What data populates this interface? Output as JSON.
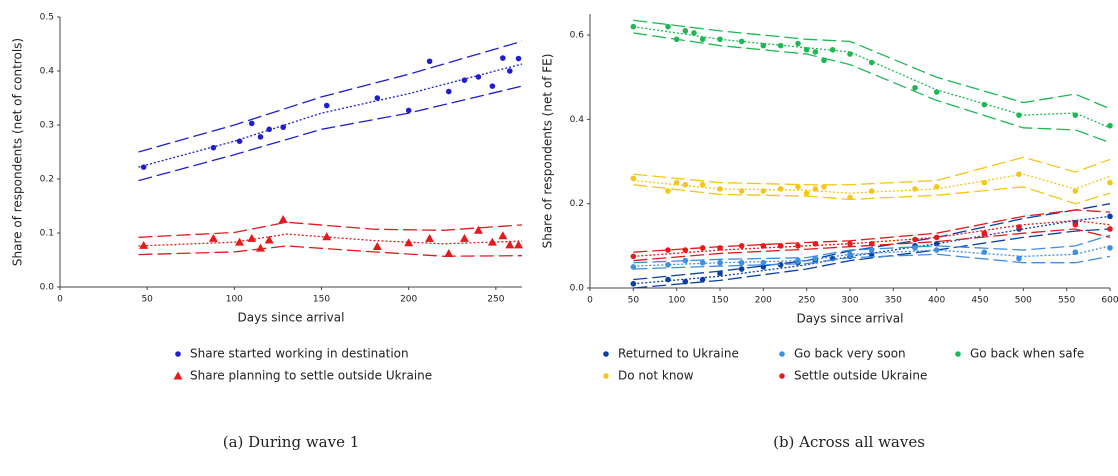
{
  "chart_data": [
    {
      "type": "scatter",
      "caption": "(a) During wave 1",
      "x_label": "Days since arrival",
      "y_label": "Share of respondents (net of controls)",
      "xlim": [
        0,
        265
      ],
      "xticks": [
        0,
        50,
        100,
        150,
        200,
        250
      ],
      "ylim": [
        0,
        0.5
      ],
      "yticks": [
        {
          "value": 0,
          "label": "0.0"
        },
        0.1,
        0.2,
        0.3,
        0.4,
        0.5
      ],
      "legend": "below",
      "series": [
        {
          "name": "Share started working in destination",
          "color": "#1f1fd0",
          "marker": "circle",
          "x": [
            48,
            88,
            103,
            110,
            115,
            120,
            128,
            153,
            182,
            200,
            212,
            223,
            232,
            240,
            248,
            254,
            258,
            263
          ],
          "values": [
            0.222,
            0.258,
            0.27,
            0.303,
            0.278,
            0.292,
            0.296,
            0.336,
            0.35,
            0.327,
            0.418,
            0.362,
            0.383,
            0.389,
            0.372,
            0.424,
            0.4,
            0.423
          ],
          "fit": {
            "x": [
              45,
              100,
              150,
              200,
              265
            ],
            "values": [
              0.222,
              0.27,
              0.322,
              0.358,
              0.413
            ],
            "lower": [
              0.197,
              0.245,
              0.292,
              0.322,
              0.372
            ],
            "upper": [
              0.25,
              0.3,
              0.352,
              0.394,
              0.455
            ]
          }
        },
        {
          "name": "Share planning to settle outside Ukraine",
          "color": "#e41a1c",
          "marker": "triangle",
          "x": [
            48,
            88,
            103,
            110,
            115,
            120,
            128,
            153,
            182,
            200,
            212,
            223,
            232,
            240,
            248,
            254,
            258,
            263
          ],
          "values": [
            0.077,
            0.09,
            0.083,
            0.09,
            0.072,
            0.087,
            0.125,
            0.093,
            0.075,
            0.082,
            0.09,
            0.062,
            0.09,
            0.105,
            0.083,
            0.095,
            0.078,
            0.078
          ],
          "fit": {
            "x": [
              45,
              100,
              130,
              180,
              220,
              265
            ],
            "values": [
              0.076,
              0.083,
              0.098,
              0.086,
              0.08,
              0.085
            ],
            "lower": [
              0.06,
              0.065,
              0.076,
              0.065,
              0.057,
              0.058
            ],
            "upper": [
              0.092,
              0.101,
              0.12,
              0.107,
              0.105,
              0.115
            ]
          }
        }
      ]
    },
    {
      "type": "scatter",
      "caption": "(b) Across all waves",
      "x_label": "Days since arrival",
      "y_label": "Share of respondents (net of FE)",
      "xlim": [
        0,
        600
      ],
      "xticks": [
        0,
        50,
        100,
        150,
        200,
        250,
        300,
        350,
        400,
        450,
        500,
        550,
        600
      ],
      "ylim": [
        0,
        0.65
      ],
      "yticks": [
        {
          "value": 0,
          "label": "0.0"
        },
        0.2,
        0.4,
        0.6
      ],
      "legend": "below",
      "series": [
        {
          "name": "Returned to Ukraine",
          "color": "#0a3fa6",
          "marker": "circle",
          "x": [
            50,
            90,
            110,
            130,
            150,
            175,
            200,
            220,
            240,
            260,
            280,
            300,
            325,
            375,
            400,
            455,
            495,
            560,
            600
          ],
          "values": [
            0.01,
            0.02,
            0.015,
            0.02,
            0.035,
            0.045,
            0.05,
            0.055,
            0.06,
            0.065,
            0.07,
            0.075,
            0.08,
            0.1,
            0.105,
            0.13,
            0.14,
            0.155,
            0.17
          ],
          "fit": {
            "x": [
              50,
              150,
              250,
              300,
              400,
              500,
              560,
              600
            ],
            "values": [
              0.01,
              0.028,
              0.055,
              0.075,
              0.105,
              0.14,
              0.16,
              0.17
            ],
            "lower": [
              0.0,
              0.018,
              0.045,
              0.065,
              0.09,
              0.12,
              0.135,
              0.14
            ],
            "upper": [
              0.02,
              0.04,
              0.065,
              0.088,
              0.12,
              0.165,
              0.185,
              0.2
            ]
          }
        },
        {
          "name": "Go back very soon",
          "color": "#3d8fe0",
          "marker": "circle",
          "x": [
            50,
            90,
            110,
            130,
            150,
            175,
            200,
            240,
            260,
            300,
            325,
            375,
            400,
            455,
            495,
            560,
            600
          ],
          "values": [
            0.05,
            0.055,
            0.065,
            0.06,
            0.06,
            0.06,
            0.06,
            0.065,
            0.07,
            0.08,
            0.09,
            0.095,
            0.09,
            0.085,
            0.07,
            0.085,
            0.095
          ],
          "fit": {
            "x": [
              50,
              150,
              250,
              300,
              400,
              500,
              560,
              600
            ],
            "values": [
              0.052,
              0.06,
              0.065,
              0.08,
              0.09,
              0.075,
              0.08,
              0.1
            ],
            "lower": [
              0.045,
              0.052,
              0.058,
              0.072,
              0.08,
              0.06,
              0.06,
              0.075
            ],
            "upper": [
              0.06,
              0.068,
              0.072,
              0.09,
              0.1,
              0.09,
              0.1,
              0.125
            ]
          }
        },
        {
          "name": "Go back when safe",
          "color": "#1db954",
          "marker": "circle",
          "x": [
            50,
            90,
            100,
            110,
            120,
            130,
            150,
            175,
            200,
            220,
            240,
            250,
            260,
            270,
            280,
            300,
            325,
            375,
            400,
            455,
            495,
            560,
            600
          ],
          "values": [
            0.62,
            0.62,
            0.59,
            0.61,
            0.605,
            0.59,
            0.59,
            0.585,
            0.575,
            0.575,
            0.58,
            0.565,
            0.56,
            0.54,
            0.565,
            0.555,
            0.535,
            0.475,
            0.465,
            0.435,
            0.41,
            0.41,
            0.385
          ],
          "fit": {
            "x": [
              50,
              150,
              250,
              300,
              400,
              500,
              560,
              600
            ],
            "values": [
              0.62,
              0.59,
              0.57,
              0.56,
              0.47,
              0.41,
              0.415,
              0.38
            ],
            "lower": [
              0.605,
              0.575,
              0.555,
              0.53,
              0.445,
              0.38,
              0.375,
              0.345
            ],
            "upper": [
              0.635,
              0.61,
              0.59,
              0.585,
              0.5,
              0.44,
              0.46,
              0.425
            ]
          }
        },
        {
          "name": "Do not know",
          "color": "#f5c518",
          "marker": "circle",
          "x": [
            50,
            90,
            100,
            110,
            130,
            150,
            175,
            200,
            220,
            240,
            250,
            260,
            270,
            300,
            325,
            375,
            400,
            455,
            495,
            560,
            600
          ],
          "values": [
            0.26,
            0.23,
            0.25,
            0.245,
            0.245,
            0.235,
            0.23,
            0.23,
            0.235,
            0.24,
            0.225,
            0.235,
            0.24,
            0.215,
            0.23,
            0.235,
            0.24,
            0.25,
            0.27,
            0.23,
            0.25
          ],
          "fit": {
            "x": [
              50,
              150,
              250,
              300,
              400,
              500,
              560,
              600
            ],
            "values": [
              0.255,
              0.235,
              0.232,
              0.225,
              0.235,
              0.27,
              0.235,
              0.265
            ],
            "lower": [
              0.245,
              0.222,
              0.218,
              0.21,
              0.22,
              0.24,
              0.2,
              0.225
            ],
            "upper": [
              0.27,
              0.25,
              0.245,
              0.245,
              0.255,
              0.31,
              0.275,
              0.305
            ]
          }
        },
        {
          "name": "Settle outside Ukraine",
          "color": "#e41a1c",
          "marker": "circle",
          "x": [
            50,
            90,
            110,
            130,
            150,
            175,
            200,
            220,
            240,
            260,
            300,
            325,
            375,
            400,
            455,
            495,
            560,
            600
          ],
          "values": [
            0.075,
            0.09,
            0.09,
            0.095,
            0.095,
            0.1,
            0.1,
            0.1,
            0.1,
            0.105,
            0.105,
            0.105,
            0.115,
            0.12,
            0.13,
            0.145,
            0.15,
            0.14
          ],
          "fit": {
            "x": [
              50,
              150,
              250,
              300,
              400,
              500,
              560,
              600
            ],
            "values": [
              0.075,
              0.09,
              0.1,
              0.105,
              0.12,
              0.15,
              0.16,
              0.15
            ],
            "lower": [
              0.065,
              0.082,
              0.092,
              0.098,
              0.11,
              0.13,
              0.14,
              0.12
            ],
            "upper": [
              0.085,
              0.098,
              0.108,
              0.112,
              0.13,
              0.17,
              0.185,
              0.18
            ]
          }
        }
      ]
    }
  ]
}
